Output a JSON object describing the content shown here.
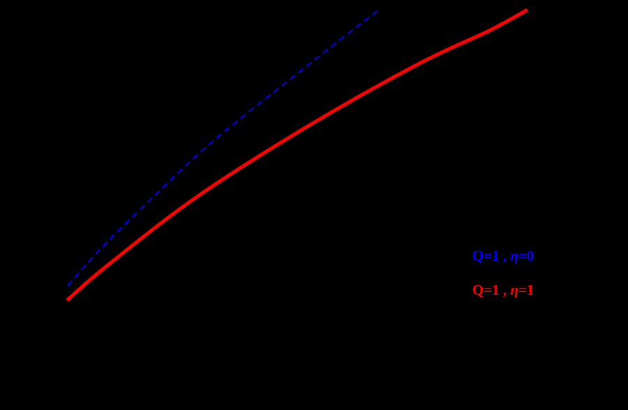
{
  "chart_data": {
    "type": "line",
    "title": "",
    "xlabel": "",
    "ylabel": "",
    "background": "#000000",
    "grid": false,
    "axes_visible": false,
    "legend_position": "lower right (inside plot)",
    "coordinate_note": "Axes and tick labels are not visible (black on black); values are given in image pixel coordinates (x right, y down).",
    "series": [
      {
        "name": "Q=1 , η=0",
        "color": "#0000ff",
        "style": "dashed",
        "line_width": 2,
        "points": [
          [
            97,
            409
          ],
          [
            150,
            350
          ],
          [
            242,
            260
          ],
          [
            280,
            224
          ],
          [
            330,
            181
          ],
          [
            440,
            94
          ],
          [
            483,
            60
          ],
          [
            542,
            14
          ]
        ]
      },
      {
        "name": "Q=1 , η=1",
        "color": "#ff0000",
        "style": "solid",
        "line_width": 5,
        "points": [
          [
            96,
            430
          ],
          [
            150,
            383
          ],
          [
            280,
            283
          ],
          [
            440,
            181
          ],
          [
            600,
            91
          ],
          [
            700,
            44
          ],
          [
            755,
            14
          ]
        ]
      }
    ]
  },
  "legend": {
    "items": [
      {
        "q_part": "Q=1 , ",
        "eta_symbol": "η",
        "eta_part": "=0",
        "color": "#0000ff"
      },
      {
        "q_part": "Q=1 , ",
        "eta_symbol": "η",
        "eta_part": "=1",
        "color": "#ff0000"
      }
    ]
  }
}
